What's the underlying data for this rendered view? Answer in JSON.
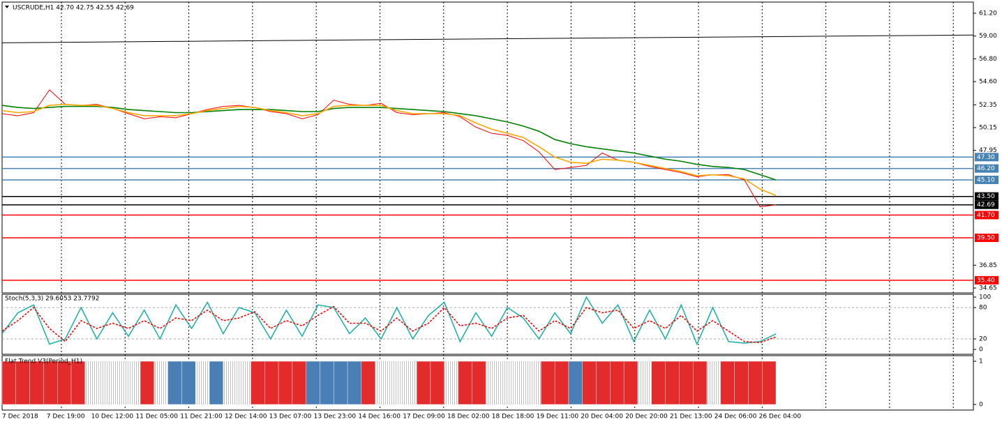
{
  "chart_data": [
    {
      "type": "line",
      "title": "USCRUDE,H1 42.70 42.75 42.55 42.69",
      "series": [
        {
          "color": "#ff0000",
          "values": [
            51.5,
            51.3,
            51.6,
            53.8,
            52.4,
            52.3,
            52.4,
            52.0,
            51.5,
            51.0,
            51.2,
            51.1,
            51.5,
            51.9,
            52.2,
            52.3,
            52.1,
            51.7,
            51.5,
            51.0,
            51.4,
            52.8,
            52.4,
            52.3,
            52.5,
            51.6,
            51.4,
            51.5,
            51.6,
            51.2,
            50.2,
            49.6,
            49.4,
            48.9,
            47.8,
            46.1,
            46.3,
            46.5,
            47.7,
            47.0,
            46.8,
            46.4,
            46.1,
            45.8,
            45.4,
            45.6,
            45.6,
            45.1,
            42.5,
            42.69
          ]
        },
        {
          "color": "#008000",
          "values": [
            52.3,
            52.1,
            52.0,
            52.1,
            52.2,
            52.2,
            52.2,
            52.1,
            51.9,
            51.8,
            51.7,
            51.6,
            51.6,
            51.7,
            51.8,
            51.9,
            51.9,
            51.9,
            51.8,
            51.7,
            51.7,
            52.0,
            52.1,
            52.1,
            52.1,
            52.0,
            51.9,
            51.8,
            51.7,
            51.5,
            51.3,
            51.0,
            50.7,
            50.3,
            49.8,
            49.0,
            48.6,
            48.3,
            48.1,
            47.9,
            47.7,
            47.4,
            47.1,
            46.9,
            46.6,
            46.4,
            46.3,
            46.1,
            45.6,
            45.1
          ]
        },
        {
          "color": "#ffa500",
          "values": [
            51.8,
            51.6,
            51.7,
            52.3,
            52.4,
            52.3,
            52.3,
            52.0,
            51.6,
            51.3,
            51.3,
            51.3,
            51.5,
            51.8,
            52.0,
            52.2,
            52.1,
            51.8,
            51.6,
            51.3,
            51.5,
            52.2,
            52.3,
            52.3,
            52.3,
            51.8,
            51.5,
            51.5,
            51.5,
            51.3,
            50.6,
            50.0,
            49.6,
            49.2,
            48.3,
            47.3,
            46.8,
            46.7,
            47.1,
            47.0,
            46.8,
            46.5,
            46.2,
            45.9,
            45.5,
            45.6,
            45.5,
            45.2,
            44.2,
            43.6
          ]
        }
      ],
      "trend_line": {
        "color": "#000000",
        "values": [
          58.35,
          59.1
        ]
      },
      "ylim": [
        34.18,
        62.28
      ],
      "yticks": [
        {
          "value": 61.2,
          "label": "61.20"
        },
        {
          "value": 59,
          "label": "59.00"
        },
        {
          "value": 56.8,
          "label": "56.80"
        },
        {
          "value": 54.6,
          "label": "54.60"
        },
        {
          "value": 52.35,
          "label": "52.35"
        },
        {
          "value": 50.15,
          "label": "50.15"
        },
        {
          "value": 47.95,
          "label": "47.95"
        },
        {
          "value": 36.85,
          "label": "36.85"
        },
        {
          "value": 34.65,
          "label": "34.65"
        }
      ],
      "levels": [
        {
          "value": 47.3,
          "label": "47.30",
          "color": "#4682b4"
        },
        {
          "value": 46.2,
          "label": "46.20",
          "color": "#4682b4"
        },
        {
          "value": 45.1,
          "label": "45.10",
          "color": "#4682b4"
        },
        {
          "value": 43.5,
          "label": "43.50",
          "color": "#000000"
        },
        {
          "value": 42.69,
          "label": "42.69",
          "color": "#000000"
        },
        {
          "value": 41.7,
          "label": "41.70",
          "color": "#ff0000"
        },
        {
          "value": 39.5,
          "label": "39.50",
          "color": "#ff0000"
        },
        {
          "value": 35.4,
          "label": "35.40",
          "color": "#ff0000"
        }
      ],
      "time_labels": [
        "7 Dec 2018",
        "7 Dec 19:00",
        "10 Dec 12:00",
        "11 Dec 05:00",
        "11 Dec 21:00",
        "12 Dec 14:00",
        "13 Dec 07:00",
        "13 Dec 23:00",
        "14 Dec 16:00",
        "17 Dec 09:00",
        "18 Dec 02:00",
        "18 Dec 18:00",
        "19 Dec 11:00",
        "20 Dec 04:00",
        "20 Dec 20:00",
        "21 Dec 13:00",
        "24 Dec 06:00",
        "26 Dec 04:00"
      ]
    },
    {
      "type": "line",
      "title": "Stoch(5,3,3) 29.6053 23.7792",
      "series": [
        {
          "color": "#20b2aa",
          "values": [
            30,
            70,
            85,
            10,
            20,
            80,
            20,
            70,
            25,
            75,
            20,
            85,
            40,
            90,
            30,
            80,
            70,
            20,
            75,
            25,
            85,
            80,
            30,
            60,
            20,
            80,
            20,
            65,
            90,
            15,
            70,
            25,
            80,
            60,
            20,
            70,
            30,
            100,
            50,
            85,
            15,
            75,
            20,
            85,
            10,
            80,
            15,
            12,
            15,
            29.6053
          ]
        },
        {
          "color": "#ff0000",
          "style": "dashed",
          "values": [
            35,
            55,
            80,
            40,
            15,
            55,
            40,
            50,
            40,
            55,
            40,
            60,
            55,
            75,
            55,
            60,
            72,
            40,
            55,
            45,
            65,
            82,
            50,
            50,
            35,
            60,
            35,
            50,
            80,
            45,
            50,
            40,
            60,
            65,
            35,
            55,
            40,
            80,
            70,
            75,
            40,
            55,
            40,
            65,
            35,
            55,
            35,
            15,
            13,
            23.7792
          ]
        }
      ],
      "ylim": [
        -9.3,
        105.3
      ],
      "yticks": [
        0,
        20,
        80,
        100
      ]
    },
    {
      "type": "bar",
      "title": "Flat Trend V3(Period_H1)",
      "values": [
        1,
        1,
        1,
        1,
        1,
        1,
        1,
        1,
        1,
        1,
        1,
        1,
        1,
        1,
        1,
        1,
        1,
        1,
        1,
        1,
        1,
        1,
        1,
        1,
        1,
        1,
        1,
        1,
        1,
        1,
        1,
        1,
        1,
        1,
        1,
        1,
        1,
        1,
        1,
        1,
        1,
        1,
        1,
        1,
        1,
        1,
        1,
        1,
        1,
        1,
        1,
        1,
        1,
        1,
        1,
        1
      ],
      "colors": [
        "#e32b2b",
        "#e32b2b",
        "#e32b2b",
        "#e32b2b",
        "#e32b2b",
        "#e32b2b",
        "#eef0f4",
        "#eef0f4",
        "#eef0f4",
        "#eef0f4",
        "#e32b2b",
        "#eef0f4",
        "#4a7fb5",
        "#4a7fb5",
        "#eef0f4",
        "#4a7fb5",
        "#eef0f4",
        "#eef0f4",
        "#e32b2b",
        "#e32b2b",
        "#e32b2b",
        "#e32b2b",
        "#4a7fb5",
        "#4a7fb5",
        "#4a7fb5",
        "#4a7fb5",
        "#e32b2b",
        "#eef0f4",
        "#eef0f4",
        "#eef0f4",
        "#e32b2b",
        "#e32b2b",
        "#eef0f4",
        "#e32b2b",
        "#e32b2b",
        "#eef0f4",
        "#eef0f4",
        "#eef0f4",
        "#eef0f4",
        "#e32b2b",
        "#e32b2b",
        "#4a7fb5",
        "#e32b2b",
        "#e32b2b",
        "#e32b2b",
        "#e32b2b",
        "#eef0f4",
        "#e32b2b",
        "#e32b2b",
        "#e32b2b",
        "#e32b2b",
        "#eef0f4",
        "#e32b2b",
        "#e32b2b",
        "#e32b2b",
        "#e32b2b"
      ],
      "ylim": [
        -0.13,
        1.13
      ],
      "yticks": [
        0,
        1
      ]
    }
  ]
}
